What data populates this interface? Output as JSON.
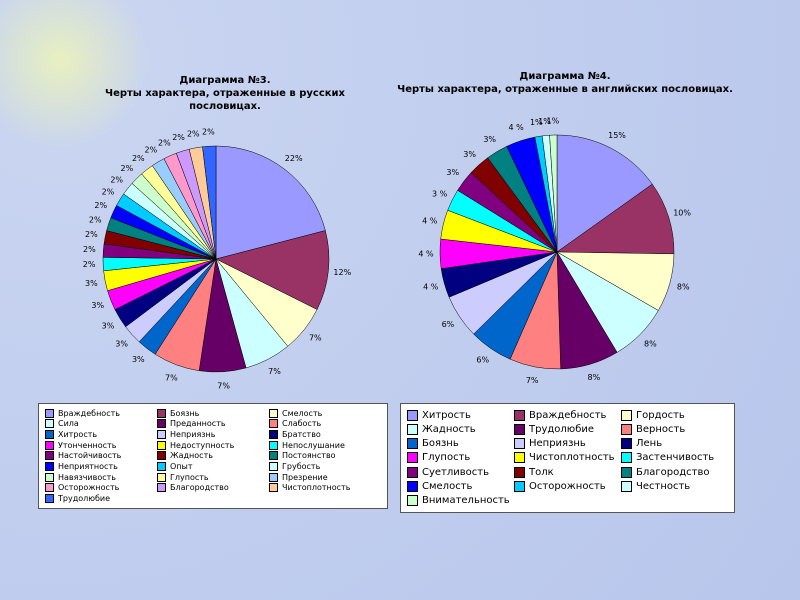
{
  "chart_data": [
    {
      "type": "pie",
      "title": "Диаграмма №3.",
      "subtitle": "Черты характера, отраженные в русских пословицах.",
      "categories": [
        "Враждебность",
        "Боязнь",
        "Смелость",
        "Сила",
        "Преданность",
        "Слабость",
        "Хитрость",
        "Неприязнь",
        "Братство",
        "Утонченность",
        "Недоступность",
        "Непослушание",
        "Настойчивость",
        "Жадность",
        "Постоянство",
        "Неприятность",
        "Опыт",
        "Грубость",
        "Навязчивость",
        "Глупость",
        "Презрение",
        "Осторожность",
        "Благородство",
        "Чистоплотность",
        "Трудолюбие"
      ],
      "values": [
        22,
        12,
        7,
        7,
        7,
        7,
        3,
        3,
        3,
        3,
        3,
        2,
        2,
        2,
        2,
        2,
        2,
        2,
        2,
        2,
        2,
        2,
        2,
        2,
        2
      ],
      "value_labels": [
        "22%",
        "12%",
        "7%",
        "7%",
        "7%",
        "7%",
        "3%",
        "3%",
        "3%",
        "3%",
        "3%",
        "2%",
        "2%",
        "2%",
        "2%",
        "2%",
        "2%",
        "2%",
        "2%",
        "2%",
        "2%",
        "2%",
        "2%",
        "2%",
        "2%"
      ],
      "colors": [
        "#9999ff",
        "#993366",
        "#ffffcc",
        "#ccffff",
        "#660066",
        "#ff8080",
        "#0066cc",
        "#ccccff",
        "#000080",
        "#ff00ff",
        "#ffff00",
        "#00ffff",
        "#800080",
        "#800000",
        "#008080",
        "#0000ff",
        "#00ccff",
        "#ccffff",
        "#ccffcc",
        "#ffff99",
        "#99ccff",
        "#ff99cc",
        "#cc99ff",
        "#ffcc99",
        "#3366ff"
      ]
    },
    {
      "type": "pie",
      "title": "Диаграмма №4.",
      "subtitle": "Черты характера, отраженные в английских пословицах.",
      "categories": [
        "Хитрость",
        "Враждебность",
        "Гордость",
        "Жадность",
        "Трудолюбие",
        "Верность",
        "Боязнь",
        "Неприязнь",
        "Лень",
        "Глупость",
        "Чистоплотность",
        "Застенчивость",
        "Суетливость",
        "Толк",
        "Благородство",
        "Смелость",
        "Осторожность",
        "Честность",
        "Внимательность"
      ],
      "values": [
        15,
        10,
        8,
        8,
        8,
        7,
        6,
        6,
        4,
        4,
        4,
        3,
        3,
        3,
        3,
        4,
        1,
        1,
        1
      ],
      "value_labels": [
        "15%",
        "10%",
        "8%",
        "8%",
        "8%",
        "7%",
        "6%",
        "6%",
        "4 %",
        "4 %",
        "4 %",
        "3 %",
        "3%",
        "3%",
        "3%",
        "4 %",
        "1%",
        "1%",
        "1%"
      ],
      "colors": [
        "#9999ff",
        "#993366",
        "#ffffcc",
        "#ccffff",
        "#660066",
        "#ff8080",
        "#0066cc",
        "#ccccff",
        "#000080",
        "#ff00ff",
        "#ffff00",
        "#00ffff",
        "#800080",
        "#800000",
        "#008080",
        "#0000ff",
        "#00ccff",
        "#ccffff",
        "#ccffcc"
      ]
    }
  ]
}
